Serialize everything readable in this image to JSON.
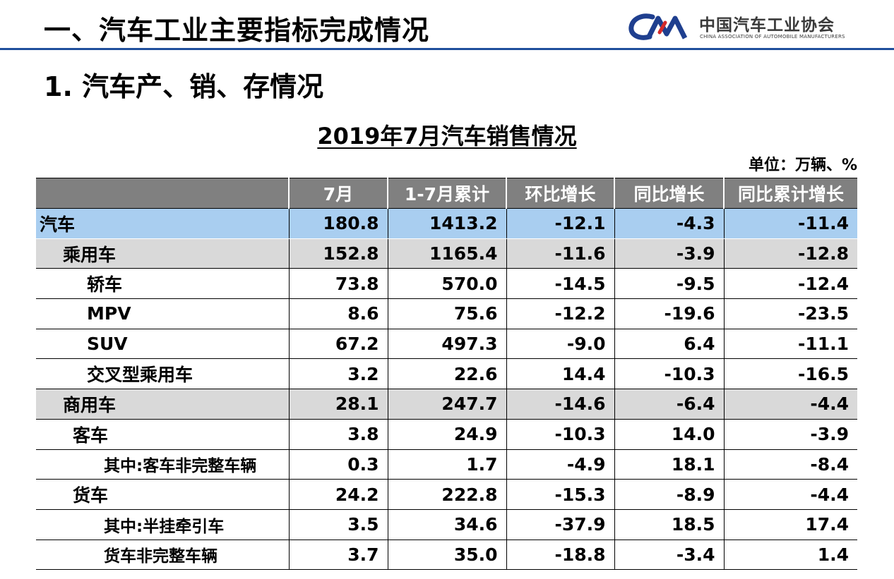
{
  "header": {
    "title": "一、汽车工业主要指标完成情况",
    "logo_cn": "中国汽车工业协会",
    "logo_en": "CHINA ASSOCIATION OF AUTOMOBILE MANUFACTURERS",
    "accent_color": "#1f4e9c",
    "logo_icon": "caam-logo-icon"
  },
  "subtitle": "1. 汽车产、销、存情况",
  "table_title": "2019年7月汽车销售情况",
  "unit": "单位：万辆、%",
  "table": {
    "columns": [
      "",
      "7月",
      "1-7月累计",
      "环比增长",
      "同比增长",
      "同比累计增长"
    ],
    "rows": [
      {
        "name": "汽车",
        "values": [
          "180.8",
          "1413.2",
          "-12.1",
          "-4.3",
          "-11.4"
        ]
      },
      {
        "name": "乘用车",
        "values": [
          "152.8",
          "1165.4",
          "-11.6",
          "-3.9",
          "-12.8"
        ]
      },
      {
        "name": "轿车",
        "values": [
          "73.8",
          "570.0",
          "-14.5",
          "-9.5",
          "-12.4"
        ]
      },
      {
        "name": "MPV",
        "values": [
          "8.6",
          "75.6",
          "-12.2",
          "-19.6",
          "-23.5"
        ]
      },
      {
        "name": "SUV",
        "values": [
          "67.2",
          "497.3",
          "-9.0",
          "6.4",
          "-11.1"
        ]
      },
      {
        "name": "交叉型乘用车",
        "values": [
          "3.2",
          "22.6",
          "14.4",
          "-10.3",
          "-16.5"
        ]
      },
      {
        "name": "商用车",
        "values": [
          "28.1",
          "247.7",
          "-14.6",
          "-6.4",
          "-4.4"
        ]
      },
      {
        "name": "客车",
        "values": [
          "3.8",
          "24.9",
          "-10.3",
          "14.0",
          "-3.9"
        ]
      },
      {
        "name": "其中:客车非完整车辆",
        "values": [
          "0.3",
          "1.7",
          "-4.9",
          "18.1",
          "-8.4"
        ]
      },
      {
        "name": "货车",
        "values": [
          "24.2",
          "222.8",
          "-15.3",
          "-8.9",
          "-4.4"
        ]
      },
      {
        "name": "其中:半挂牵引车",
        "values": [
          "3.5",
          "34.6",
          "-37.9",
          "18.5",
          "17.4"
        ]
      },
      {
        "name": "货车非完整车辆",
        "values": [
          "3.7",
          "35.0",
          "-18.8",
          "-3.4",
          "1.4"
        ]
      }
    ]
  }
}
